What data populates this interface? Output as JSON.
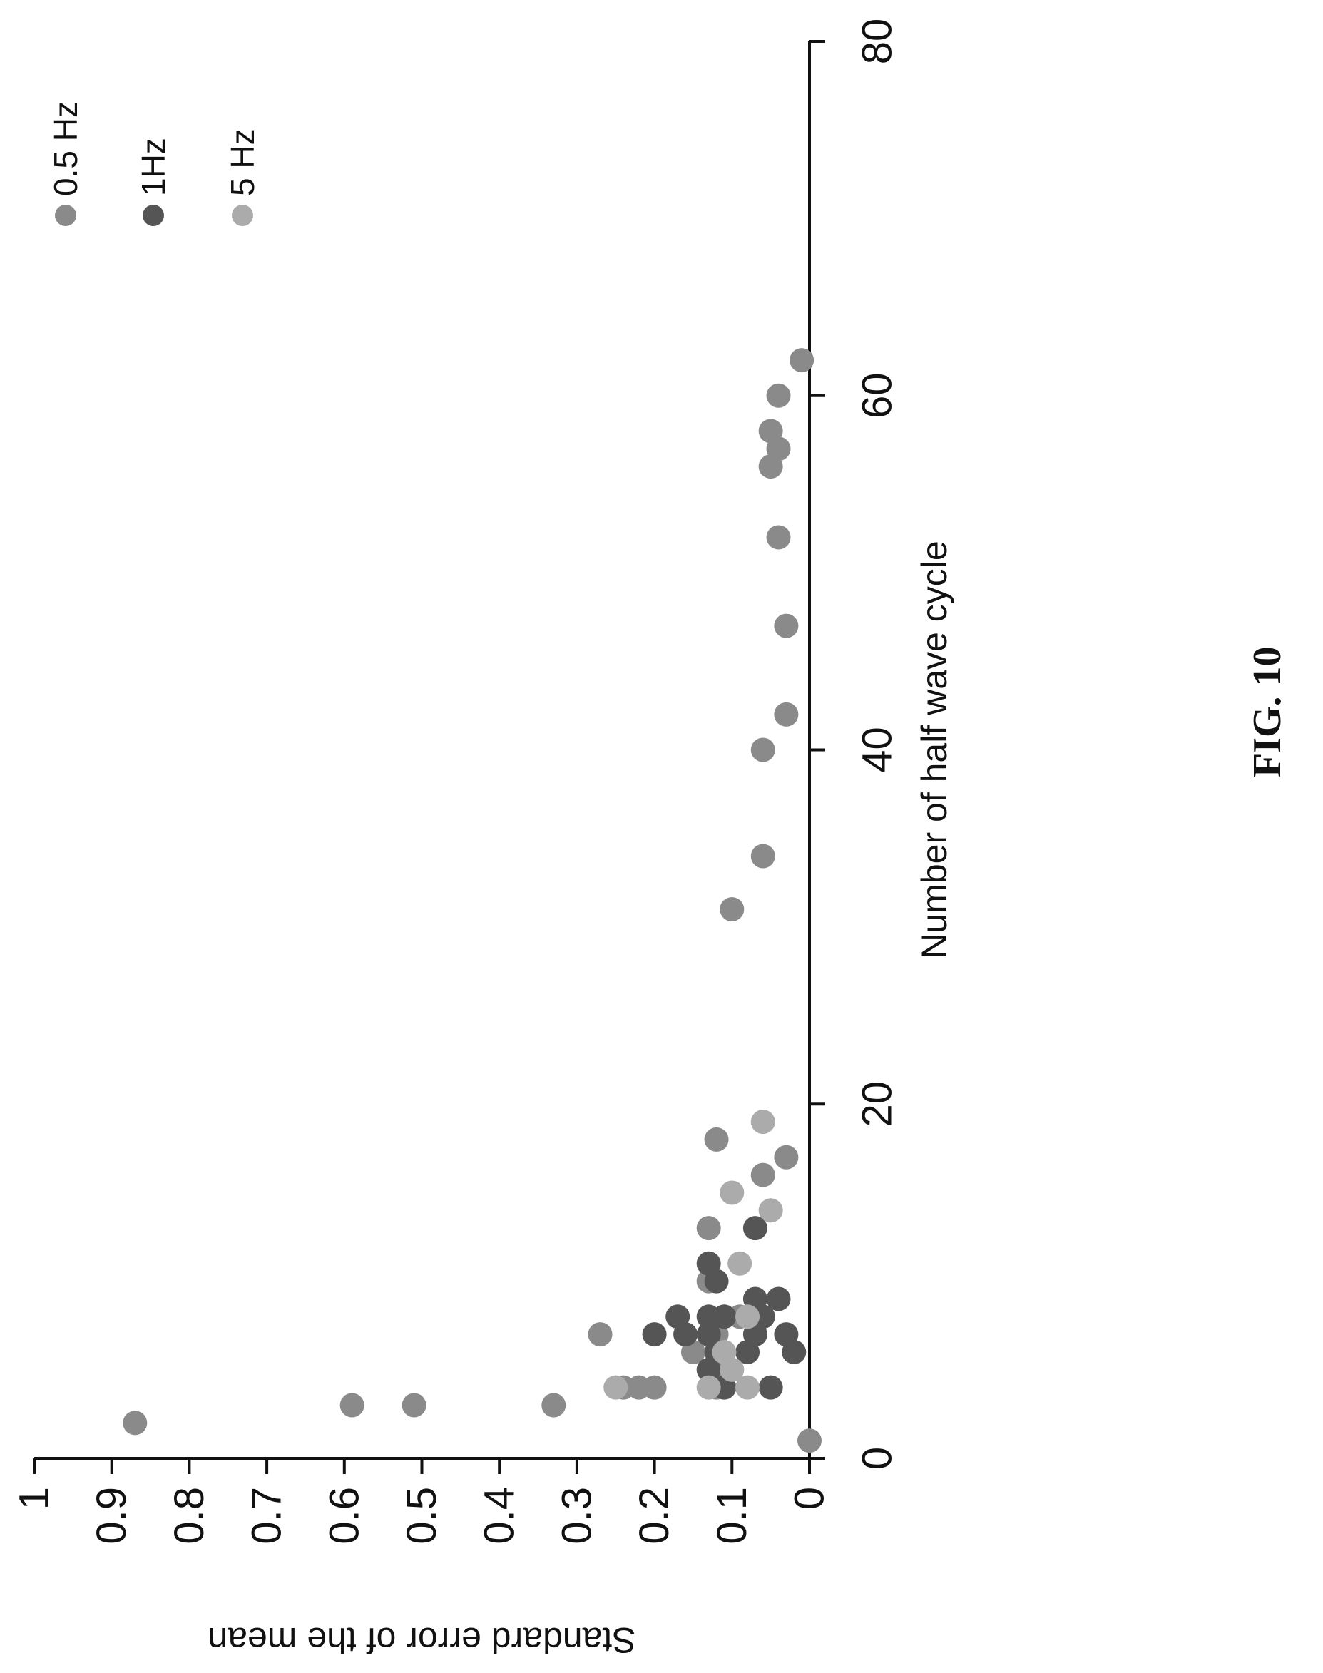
{
  "figure_label": "FIG. 10",
  "chart_data": {
    "type": "scatter",
    "xlabel": "Number of half wave cycle",
    "ylabel": "Standard error of the mean",
    "xlim": [
      0,
      80
    ],
    "ylim": [
      0,
      1
    ],
    "x_ticks": [
      "0",
      "20",
      "40",
      "60",
      "80"
    ],
    "y_ticks": [
      "0",
      "0.1",
      "0.2",
      "0.3",
      "0.4",
      "0.5",
      "0.6",
      "0.7",
      "0.8",
      "0.9",
      "1"
    ],
    "grid": false,
    "legend_position": "top-right",
    "series": [
      {
        "name": "0.5 Hz",
        "color": "#8a8a8a",
        "points": [
          [
            1,
            0.0
          ],
          [
            2,
            0.87
          ],
          [
            3,
            0.59
          ],
          [
            3,
            0.51
          ],
          [
            3,
            0.33
          ],
          [
            4,
            0.24
          ],
          [
            4,
            0.22
          ],
          [
            4,
            0.2
          ],
          [
            4,
            0.12
          ],
          [
            5,
            0.11
          ],
          [
            6,
            0.15
          ],
          [
            7,
            0.27
          ],
          [
            7,
            0.12
          ],
          [
            8,
            0.09
          ],
          [
            10,
            0.13
          ],
          [
            13,
            0.13
          ],
          [
            16,
            0.06
          ],
          [
            17,
            0.03
          ],
          [
            18,
            0.12
          ],
          [
            31,
            0.1
          ],
          [
            34,
            0.06
          ],
          [
            40,
            0.06
          ],
          [
            42,
            0.03
          ],
          [
            47,
            0.03
          ],
          [
            52,
            0.04
          ],
          [
            56,
            0.05
          ],
          [
            57,
            0.04
          ],
          [
            58,
            0.05
          ],
          [
            60,
            0.04
          ],
          [
            62,
            0.01
          ]
        ]
      },
      {
        "name": "1Hz",
        "color": "#555555",
        "points": [
          [
            4,
            0.11
          ],
          [
            4,
            0.05
          ],
          [
            5,
            0.13
          ],
          [
            6,
            0.12
          ],
          [
            6,
            0.08
          ],
          [
            6,
            0.02
          ],
          [
            7,
            0.2
          ],
          [
            7,
            0.16
          ],
          [
            7,
            0.13
          ],
          [
            7,
            0.07
          ],
          [
            7,
            0.03
          ],
          [
            8,
            0.17
          ],
          [
            8,
            0.13
          ],
          [
            8,
            0.11
          ],
          [
            8,
            0.06
          ],
          [
            9,
            0.07
          ],
          [
            9,
            0.04
          ],
          [
            10,
            0.12
          ],
          [
            11,
            0.13
          ],
          [
            13,
            0.07
          ]
        ]
      },
      {
        "name": "5 Hz",
        "color": "#ababab",
        "points": [
          [
            4,
            0.25
          ],
          [
            4,
            0.13
          ],
          [
            4,
            0.08
          ],
          [
            5,
            0.1
          ],
          [
            6,
            0.11
          ],
          [
            8,
            0.08
          ],
          [
            11,
            0.09
          ],
          [
            14,
            0.05
          ],
          [
            15,
            0.1
          ],
          [
            19,
            0.06
          ]
        ]
      }
    ]
  }
}
